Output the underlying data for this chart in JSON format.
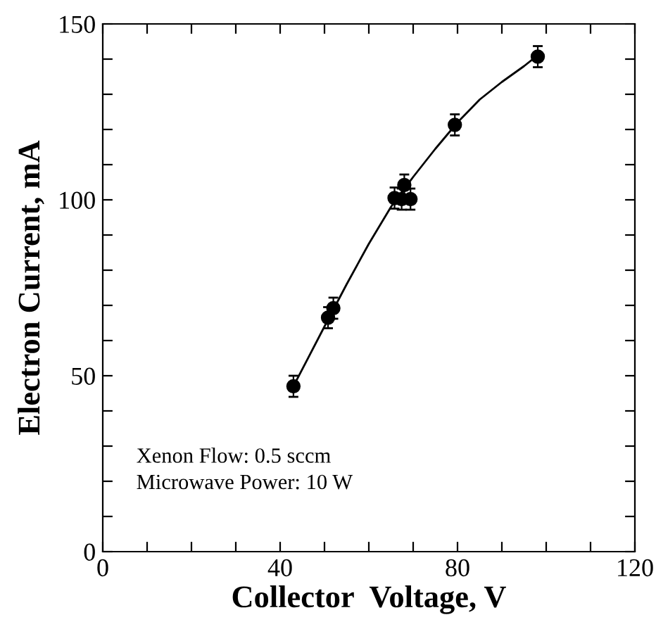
{
  "chart_data": {
    "type": "scatter",
    "xlabel": "Collector  Voltage, V",
    "ylabel": "Electron Current, mA",
    "series": [
      {
        "color": "#000000",
        "marker": "circle",
        "x": [
          43,
          50.8,
          52,
          65.8,
          67.4,
          69.4,
          68,
          79.4,
          98.1
        ],
        "values": [
          47,
          66.5,
          69.2,
          100.5,
          100.2,
          100.2,
          104.2,
          121.3,
          140.7
        ],
        "errors": [
          3,
          3,
          3,
          3,
          3,
          3,
          3,
          3,
          3
        ]
      },
      {
        "type": "line",
        "color": "#000000",
        "marker": "none",
        "line_style": "solid",
        "x": [
          43,
          50,
          55,
          60,
          65,
          70,
          75,
          80,
          85,
          90,
          95,
          98
        ],
        "values": [
          47,
          64,
          76,
          87.5,
          98,
          106.5,
          114.5,
          122,
          128.5,
          133.5,
          138,
          141
        ]
      }
    ],
    "xlim": [
      0,
      120
    ],
    "ylim": [
      0,
      150
    ],
    "xticks": [
      0,
      {
        "value": 10,
        "label": null
      },
      {
        "value": 20,
        "label": null
      },
      {
        "value": 30,
        "label": null
      },
      40,
      {
        "value": 50,
        "label": null
      },
      {
        "value": 60,
        "label": null
      },
      {
        "value": 70,
        "label": null
      },
      80,
      {
        "value": 90,
        "label": null
      },
      {
        "value": 100,
        "label": null
      },
      {
        "value": 110,
        "label": null
      },
      120
    ],
    "yticks": [
      0,
      {
        "value": 10,
        "label": null
      },
      {
        "value": 20,
        "label": null
      },
      {
        "value": 30,
        "label": null
      },
      {
        "value": 40,
        "label": null
      },
      50,
      {
        "value": 60,
        "label": null
      },
      {
        "value": 70,
        "label": null
      },
      {
        "value": 80,
        "label": null
      },
      {
        "value": 90,
        "label": null
      },
      100,
      {
        "value": 110,
        "label": null
      },
      {
        "value": 120,
        "label": null
      },
      {
        "value": 130,
        "label": null
      },
      {
        "value": 140,
        "label": null
      },
      150
    ],
    "annotations": [
      "Xenon Flow: 0.5 sccm",
      "Microwave Power: 10 W"
    ],
    "grid": false,
    "legend": false
  }
}
